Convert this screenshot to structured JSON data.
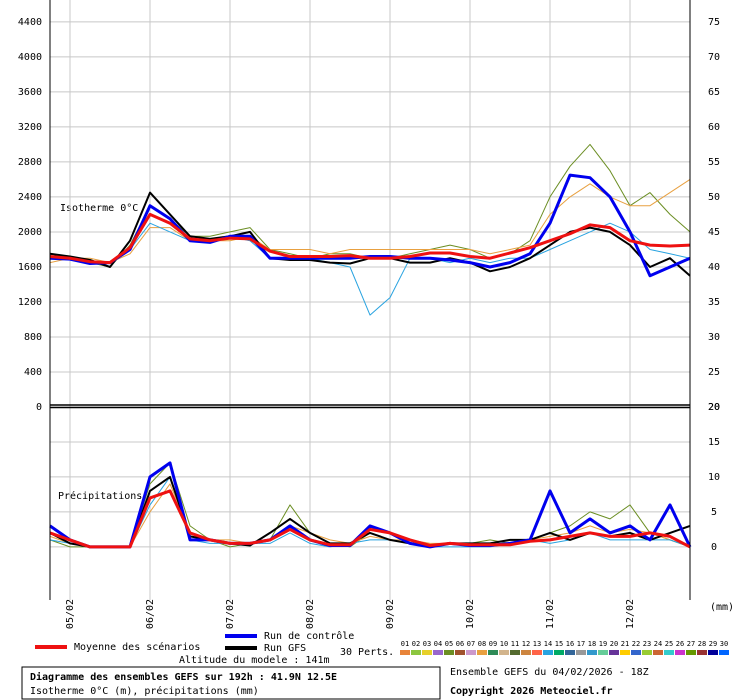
{
  "chart_data": [
    {
      "type": "line",
      "title": "Isotherme 0°C",
      "x": [
        0,
        6,
        12,
        18,
        24,
        30,
        36,
        42,
        48,
        54,
        60,
        66,
        72,
        78,
        84,
        90,
        96,
        102,
        108,
        114,
        120,
        126,
        132,
        138,
        144,
        150,
        156,
        162,
        168,
        174,
        180,
        186,
        192
      ],
      "xlim": [
        0,
        192
      ],
      "ylim": [
        0,
        4650
      ],
      "yticks": [
        0,
        400,
        800,
        1200,
        1600,
        2000,
        2400,
        2800,
        3200,
        3600,
        4000,
        4400
      ],
      "y2lim": [
        20,
        78.125
      ],
      "y2ticks": [
        20,
        25,
        30,
        35,
        40,
        45,
        50,
        55,
        60,
        65,
        70,
        75
      ],
      "grid": true,
      "series": [
        {
          "color": "#6b8e23",
          "width": 1,
          "values": [
            1750,
            1700,
            1650,
            1600,
            1850,
            2300,
            2150,
            1950,
            1950,
            2000,
            2050,
            1800,
            1750,
            1700,
            1750,
            1750,
            1700,
            1700,
            1750,
            1800,
            1850,
            1800,
            1700,
            1750,
            1900,
            2400,
            2750,
            3000,
            2700,
            2300,
            2450,
            2200,
            2000
          ]
        },
        {
          "color": "#e8a040",
          "width": 1,
          "values": [
            1650,
            1700,
            1700,
            1650,
            1750,
            2050,
            2050,
            1900,
            1900,
            1900,
            1950,
            1800,
            1800,
            1800,
            1750,
            1800,
            1800,
            1800,
            1800,
            1800,
            1800,
            1800,
            1750,
            1800,
            1850,
            2200,
            2400,
            2550,
            2400,
            2300,
            2300,
            2450,
            2600
          ]
        },
        {
          "color": "#29a3e0",
          "width": 1,
          "values": [
            1700,
            1680,
            1650,
            1650,
            1800,
            2100,
            2000,
            1900,
            1900,
            1950,
            1900,
            1700,
            1700,
            1700,
            1650,
            1600,
            1050,
            1250,
            1700,
            1700,
            1650,
            1700,
            1650,
            1700,
            1700,
            1800,
            1900,
            2000,
            2100,
            2000,
            1800,
            1750,
            1700
          ]
        },
        {
          "name": "Run GFS",
          "color": "#000000",
          "width": 2,
          "values": [
            1750,
            1720,
            1680,
            1600,
            1900,
            2450,
            2200,
            1950,
            1920,
            1950,
            2000,
            1700,
            1680,
            1680,
            1650,
            1640,
            1700,
            1700,
            1650,
            1650,
            1700,
            1650,
            1550,
            1600,
            1700,
            1850,
            2000,
            2050,
            2000,
            1850,
            1600,
            1700,
            1500
          ]
        },
        {
          "name": "Run de contrôle",
          "color": "#0000ee",
          "width": 3,
          "values": [
            1700,
            1690,
            1640,
            1650,
            1800,
            2300,
            2150,
            1900,
            1880,
            1950,
            1950,
            1700,
            1700,
            1700,
            1700,
            1700,
            1720,
            1720,
            1700,
            1700,
            1680,
            1650,
            1600,
            1650,
            1750,
            2100,
            2650,
            2620,
            2400,
            2000,
            1500,
            1600,
            1700
          ]
        },
        {
          "name": "Moyenne des scénarios",
          "color": "#ee1111",
          "width": 3,
          "values": [
            1720,
            1700,
            1660,
            1650,
            1820,
            2200,
            2100,
            1920,
            1900,
            1930,
            1920,
            1780,
            1720,
            1720,
            1720,
            1730,
            1700,
            1700,
            1720,
            1760,
            1760,
            1720,
            1700,
            1760,
            1820,
            1900,
            1980,
            2080,
            2050,
            1900,
            1850,
            1840,
            1850
          ]
        }
      ]
    },
    {
      "type": "line",
      "title": "Précipitations",
      "y2label": "(mm)",
      "x": [
        0,
        6,
        12,
        18,
        24,
        30,
        36,
        42,
        48,
        54,
        60,
        66,
        72,
        78,
        84,
        90,
        96,
        102,
        108,
        114,
        120,
        126,
        132,
        138,
        144,
        150,
        156,
        162,
        168,
        174,
        180,
        186,
        192
      ],
      "xlim": [
        0,
        192
      ],
      "xticks": [
        {
          "value": 6,
          "label": "05/02"
        },
        {
          "value": 30,
          "label": "06/02"
        },
        {
          "value": 54,
          "label": "07/02"
        },
        {
          "value": 78,
          "label": "08/02"
        },
        {
          "value": 102,
          "label": "09/02"
        },
        {
          "value": 126,
          "label": "10/02"
        },
        {
          "value": 150,
          "label": "11/02"
        },
        {
          "value": 174,
          "label": "12/02"
        }
      ],
      "y2lim": [
        -7.6,
        20
      ],
      "y2ticks": [
        0,
        5,
        10,
        15,
        20
      ],
      "grid": true,
      "series": [
        {
          "color": "#6b8e23",
          "width": 1,
          "axis": "y2",
          "values": [
            1,
            0,
            0,
            0,
            0,
            9,
            12,
            3,
            1,
            0,
            0.5,
            1,
            6,
            2,
            0.5,
            0,
            2,
            1,
            0.5,
            0,
            0.5,
            0.5,
            1,
            0.5,
            1,
            2,
            3,
            5,
            4,
            6,
            2,
            1,
            0
          ]
        },
        {
          "color": "#e8a040",
          "width": 1,
          "axis": "y2",
          "values": [
            1.5,
            0.5,
            0,
            0,
            0,
            5,
            9,
            2,
            1,
            1,
            0.5,
            1,
            3,
            2,
            1,
            0.5,
            1.5,
            1,
            1,
            0.5,
            0.5,
            0.5,
            0.5,
            1,
            1,
            1.5,
            2,
            3,
            2,
            2.5,
            2,
            1,
            0
          ]
        },
        {
          "color": "#29a3e0",
          "width": 1,
          "axis": "y2",
          "values": [
            1,
            0.5,
            0,
            0,
            0,
            6,
            10,
            1,
            0.5,
            0.5,
            0.5,
            0.5,
            2,
            0.5,
            0,
            0.5,
            1,
            1,
            0.5,
            0,
            0,
            0,
            0,
            0.5,
            1,
            0.5,
            1,
            2,
            1,
            1,
            1,
            1,
            0
          ]
        },
        {
          "color": "#000000",
          "width": 2,
          "axis": "y2",
          "values": [
            2,
            0.5,
            0,
            0,
            0,
            8,
            10,
            1.5,
            1,
            0.5,
            0.2,
            2,
            4,
            2,
            0.5,
            0.5,
            2,
            1,
            0.5,
            0,
            0.5,
            0.5,
            0.5,
            1,
            1,
            2,
            1,
            2,
            1.5,
            2,
            1,
            2,
            3
          ]
        },
        {
          "color": "#0000ee",
          "width": 3,
          "axis": "y2",
          "values": [
            3,
            1,
            0,
            0,
            0,
            10,
            12,
            1,
            1,
            0.5,
            0.5,
            1,
            3,
            1,
            0.2,
            0.2,
            3,
            2,
            0.5,
            0,
            0.5,
            0.2,
            0.2,
            0.5,
            1,
            8,
            2,
            4,
            2,
            3,
            1,
            6,
            0
          ]
        },
        {
          "color": "#ee1111",
          "width": 3,
          "axis": "y2",
          "values": [
            2,
            1,
            0,
            0,
            0,
            7,
            8,
            2,
            1,
            0.5,
            0.5,
            1,
            2.5,
            1,
            0.3,
            0.3,
            2.5,
            2,
            1,
            0.2,
            0.5,
            0.3,
            0.3,
            0.3,
            0.8,
            1,
            1.5,
            2,
            1.5,
            1.5,
            2,
            1.5,
            0
          ]
        }
      ]
    }
  ],
  "legend": {
    "perts_label": "30 Perts.",
    "members": [
      {
        "name": "01",
        "color": "#e8843a"
      },
      {
        "name": "02",
        "color": "#8cc63f"
      },
      {
        "name": "03",
        "color": "#e6d02a"
      },
      {
        "name": "04",
        "color": "#9966cc"
      },
      {
        "name": "05",
        "color": "#6b8e23"
      },
      {
        "name": "06",
        "color": "#a0522d"
      },
      {
        "name": "07",
        "color": "#cc99cc"
      },
      {
        "name": "08",
        "color": "#e8a040"
      },
      {
        "name": "09",
        "color": "#2e8b57"
      },
      {
        "name": "10",
        "color": "#d2b48c"
      },
      {
        "name": "11",
        "color": "#556b2f"
      },
      {
        "name": "12",
        "color": "#cd853f"
      },
      {
        "name": "13",
        "color": "#ff6347"
      },
      {
        "name": "14",
        "color": "#29a3e0"
      },
      {
        "name": "15",
        "color": "#00aa66"
      },
      {
        "name": "16",
        "color": "#336699"
      },
      {
        "name": "17",
        "color": "#999999"
      },
      {
        "name": "18",
        "color": "#3399cc"
      },
      {
        "name": "19",
        "color": "#66cc99"
      },
      {
        "name": "20",
        "color": "#663399"
      },
      {
        "name": "21",
        "color": "#ffcc00"
      },
      {
        "name": "22",
        "color": "#3366cc"
      },
      {
        "name": "23",
        "color": "#99cc33"
      },
      {
        "name": "24",
        "color": "#cc6633"
      },
      {
        "name": "25",
        "color": "#33cccc"
      },
      {
        "name": "26",
        "color": "#cc33cc"
      },
      {
        "name": "27",
        "color": "#669900"
      },
      {
        "name": "28",
        "color": "#993333"
      },
      {
        "name": "29",
        "color": "#000099"
      },
      {
        "name": "30",
        "color": "#0066ff"
      }
    ]
  },
  "altitude": "Altitude du modele : 141m",
  "footer": {
    "title": "Diagramme des ensembles GEFS sur 192h : 41.9N 12.5E",
    "subtitle": "Isotherme 0°C (m), précipitations (mm)",
    "run": "Ensemble GEFS du 04/02/2026 - 18Z",
    "copyright": "Copyright 2026 Meteociel.fr"
  }
}
